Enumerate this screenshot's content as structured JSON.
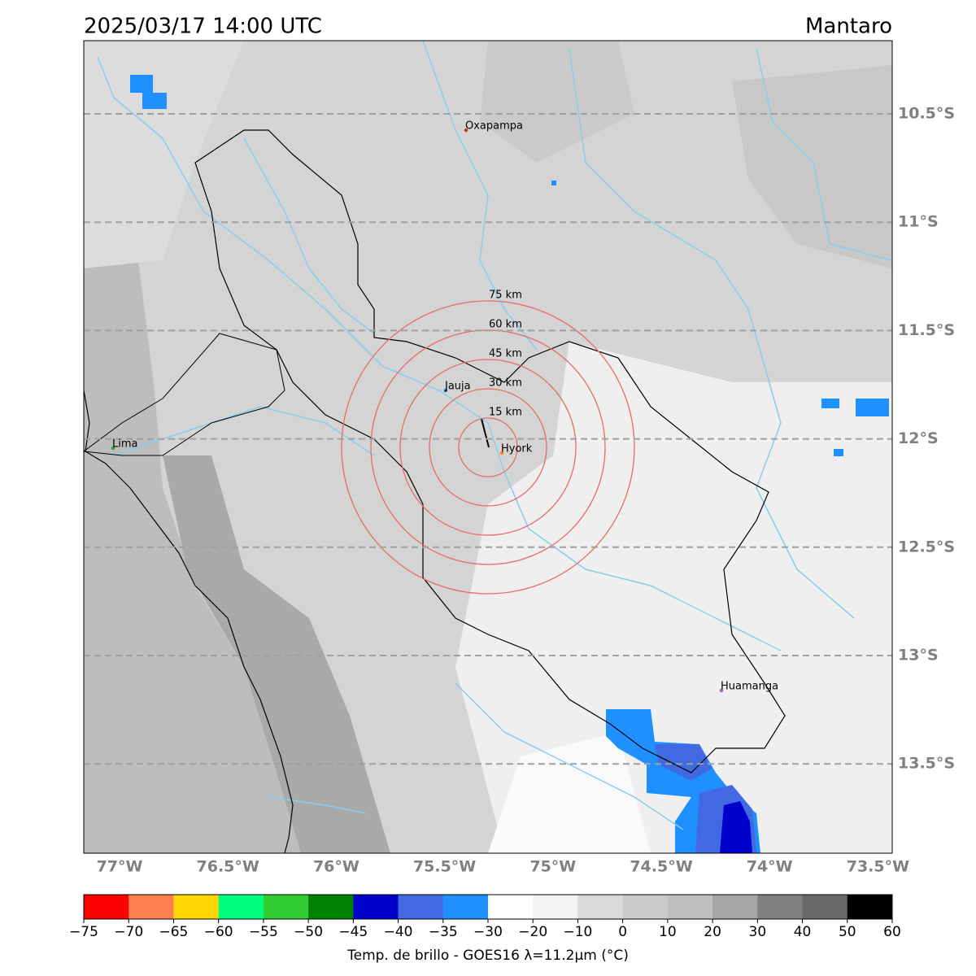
{
  "header": {
    "datetime": "2025/03/17 14:00 UTC",
    "region": "Mantaro"
  },
  "map": {
    "latitude_labels": [
      "10.5°S",
      "11°S",
      "11.5°S",
      "12°S",
      "12.5°S",
      "13°S",
      "13.5°S"
    ],
    "longitude_labels": [
      "77°W",
      "76.5°W",
      "76°W",
      "75.5°W",
      "75°W",
      "74.5°W",
      "74°W",
      "73.5°W"
    ],
    "places": [
      "Oxapampa",
      "Jauja",
      "Lima",
      "Hyork",
      "Huamanga"
    ],
    "range_rings": [
      "15 km",
      "30 km",
      "45 km",
      "60 km",
      "75 km"
    ]
  },
  "colorbar": {
    "colors": [
      "#ff0000",
      "#ff7f50",
      "#ffd700",
      "#00ff7f",
      "#32cd32",
      "#008000",
      "#0000cd",
      "#4169e1",
      "#1e90ff",
      "#ffffff",
      "#f2f2f2",
      "#d9d9d9",
      "#cccccc",
      "#bfbfbf",
      "#a6a6a6",
      "#808080",
      "#696969",
      "#000000"
    ],
    "ticks": [
      "−75",
      "−70",
      "−65",
      "−60",
      "−55",
      "−50",
      "−45",
      "−40",
      "−35",
      "−30",
      "−20",
      "−10",
      "0",
      "10",
      "20",
      "30",
      "40",
      "50",
      "60"
    ],
    "label": "Temp. de brillo - GOES16 λ=11.2μm (°C)"
  }
}
